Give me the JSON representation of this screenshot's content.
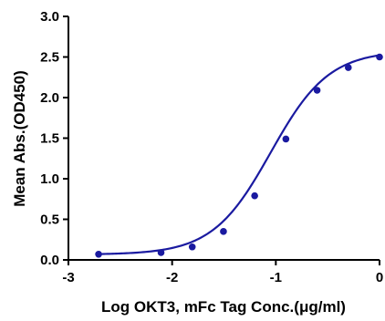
{
  "chart_data": {
    "type": "scatter",
    "title": "",
    "xlabel": "Log OKT3, mFc Tag Conc.(μg/ml)",
    "ylabel": "Mean Abs.(OD450)",
    "xlim": [
      -3,
      0
    ],
    "ylim": [
      0,
      3
    ],
    "x_ticks": [
      -3,
      -2,
      -1,
      0
    ],
    "y_ticks": [
      0.0,
      0.5,
      1.0,
      1.5,
      2.0,
      2.5,
      3.0
    ],
    "x_tick_labels": [
      "-3",
      "-2",
      "-1",
      "0"
    ],
    "y_tick_labels": [
      "0.0",
      "0.5",
      "1.0",
      "1.5",
      "2.0",
      "2.5",
      "3.0"
    ],
    "grid": false,
    "legend": "none",
    "series_color": "#1a1aa0",
    "fit": "4PL sigmoid",
    "series": [
      {
        "x": [
          -2.709,
          -2.107,
          -1.806,
          -1.505,
          -1.204,
          -0.903,
          -0.602,
          -0.301,
          0.0
        ],
        "y": [
          0.07,
          0.09,
          0.16,
          0.35,
          0.79,
          1.49,
          2.09,
          2.37,
          2.5
        ]
      }
    ]
  }
}
